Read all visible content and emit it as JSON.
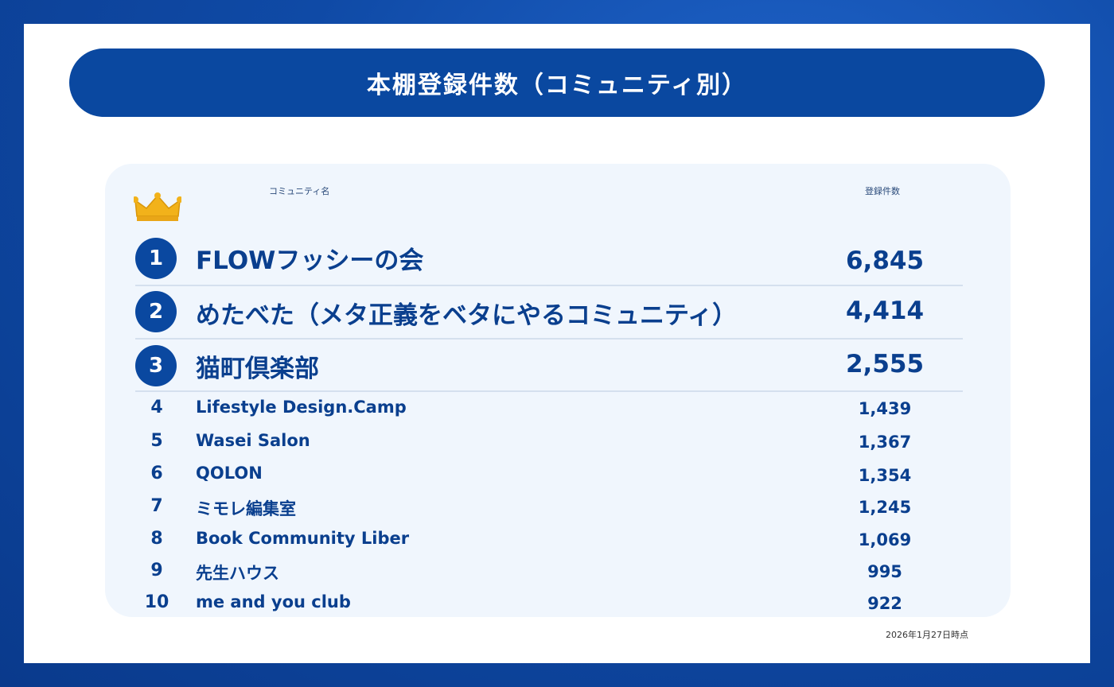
{
  "title": "本棚登録件数（コミュニティ別）",
  "header": {
    "name_col": "コミュニティ名",
    "count_col": "登録件数"
  },
  "top": [
    {
      "rank": "1",
      "name": "FLOWフッシーの会",
      "count": "6,845"
    },
    {
      "rank": "2",
      "name": "めたべた（メタ正義をベタにやるコミュニティ）",
      "count": "4,414"
    },
    {
      "rank": "3",
      "name": "猫町倶楽部",
      "count": "2,555"
    }
  ],
  "rest": [
    {
      "rank": "4",
      "name": "Lifestyle Design.Camp",
      "count": "1,439"
    },
    {
      "rank": "5",
      "name": "Wasei Salon",
      "count": "1,367"
    },
    {
      "rank": "6",
      "name": "QOLON",
      "count": "1,354"
    },
    {
      "rank": "7",
      "name": "ミモレ編集室",
      "count": "1,245"
    },
    {
      "rank": "8",
      "name": "Book Community Liber",
      "count": "1,069"
    },
    {
      "rank": "9",
      "name": "先生ハウス",
      "count": "995"
    },
    {
      "rank": "10",
      "name": "me and you club",
      "count": "922"
    }
  ],
  "footnote": "2026年1月27日時点",
  "colors": {
    "primary": "#0a48a0",
    "text": "#0a3f8e",
    "panel": "#f0f6fd",
    "crown": "#f2b21a"
  }
}
